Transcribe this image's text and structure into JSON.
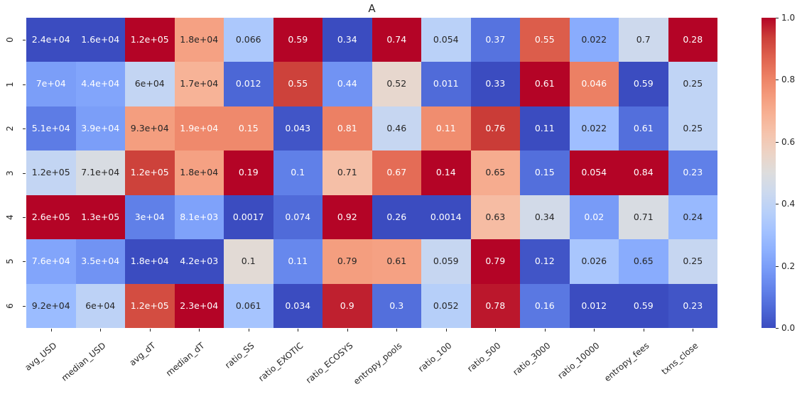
{
  "figure": {
    "background": "#ffffff"
  },
  "chart_data": {
    "type": "heatmap",
    "title": "A",
    "colormap": "coolwarm",
    "legend_position": "right-colorbar",
    "grid": false,
    "columns": [
      "avg_USD",
      "median_USD",
      "avg_dT",
      "median_dT",
      "ratio_SS",
      "ratio_EXOTIC",
      "ratio_ECOSYS",
      "entropy_pools",
      "ratio_100",
      "ratio_500",
      "ratio_3000",
      "ratio_10000",
      "entropy_fees",
      "txns_close"
    ],
    "rows": [
      "0",
      "1",
      "2",
      "3",
      "4",
      "5",
      "6"
    ],
    "cell_labels": [
      [
        "2.4e+04",
        "1.6e+04",
        "1.2e+05",
        "1.8e+04",
        "0.066",
        "0.59",
        "0.34",
        "0.74",
        "0.054",
        "0.37",
        "0.55",
        "0.022",
        "0.7",
        "0.28"
      ],
      [
        "7e+04",
        "4.4e+04",
        "6e+04",
        "1.7e+04",
        "0.012",
        "0.55",
        "0.44",
        "0.52",
        "0.011",
        "0.33",
        "0.61",
        "0.046",
        "0.59",
        "0.25"
      ],
      [
        "5.1e+04",
        "3.9e+04",
        "9.3e+04",
        "1.9e+04",
        "0.15",
        "0.043",
        "0.81",
        "0.46",
        "0.11",
        "0.76",
        "0.11",
        "0.022",
        "0.61",
        "0.25"
      ],
      [
        "1.2e+05",
        "7.1e+04",
        "1.2e+05",
        "1.8e+04",
        "0.19",
        "0.1",
        "0.71",
        "0.67",
        "0.14",
        "0.65",
        "0.15",
        "0.054",
        "0.84",
        "0.23"
      ],
      [
        "2.6e+05",
        "1.3e+05",
        "3e+04",
        "8.1e+03",
        "0.0017",
        "0.074",
        "0.92",
        "0.26",
        "0.0014",
        "0.63",
        "0.34",
        "0.02",
        "0.71",
        "0.24"
      ],
      [
        "7.6e+04",
        "3.5e+04",
        "1.8e+04",
        "4.2e+03",
        "0.1",
        "0.11",
        "0.79",
        "0.61",
        "0.059",
        "0.79",
        "0.12",
        "0.026",
        "0.65",
        "0.25"
      ],
      [
        "9.2e+04",
        "6e+04",
        "1.2e+05",
        "2.3e+04",
        "0.061",
        "0.034",
        "0.9",
        "0.3",
        "0.052",
        "0.78",
        "0.16",
        "0.012",
        "0.59",
        "0.23"
      ]
    ],
    "cell_color_values": [
      [
        0.0,
        0.0,
        1.0,
        0.73,
        0.34,
        1.0,
        0.0,
        1.0,
        0.38,
        0.09,
        0.88,
        0.24,
        0.44,
        1.0
      ],
      [
        0.2,
        0.22,
        0.41,
        0.68,
        0.06,
        0.93,
        0.17,
        0.54,
        0.07,
        0.0,
        1.0,
        0.81,
        0.0,
        0.4
      ],
      [
        0.11,
        0.2,
        0.74,
        0.79,
        0.79,
        0.02,
        0.81,
        0.42,
        0.78,
        0.94,
        0.0,
        0.3,
        0.08,
        0.4
      ],
      [
        0.41,
        0.48,
        0.93,
        0.73,
        1.0,
        0.12,
        0.64,
        0.85,
        1.0,
        0.7,
        0.08,
        1.0,
        1.0,
        0.12
      ],
      [
        1.0,
        1.0,
        0.12,
        0.21,
        0.0,
        0.07,
        1.0,
        0.0,
        0.0,
        0.65,
        0.46,
        0.19,
        0.48,
        0.28
      ],
      [
        0.22,
        0.17,
        0.0,
        0.0,
        0.52,
        0.14,
        0.74,
        0.73,
        0.42,
        1.0,
        0.02,
        0.33,
        0.24,
        0.42
      ],
      [
        0.29,
        0.39,
        0.91,
        1.0,
        0.32,
        0.0,
        0.97,
        0.08,
        0.37,
        0.98,
        0.1,
        0.0,
        0.0,
        0.02
      ]
    ],
    "colorbar": {
      "tick_labels": [
        "1.0",
        "0.8",
        "0.6",
        "0.4",
        "0.2",
        "0.0"
      ],
      "tick_values": [
        1.0,
        0.8,
        0.6,
        0.4,
        0.2,
        0.0
      ],
      "range": [
        0.0,
        1.0
      ]
    },
    "colors": {
      "cmap_low": "#3b4cc0",
      "cmap_mid": "#dddddd",
      "cmap_high": "#b40426",
      "annotation_dark": "#262626",
      "annotation_light": "#ffffff",
      "axis_text": "#262626",
      "background": "#ffffff"
    }
  }
}
